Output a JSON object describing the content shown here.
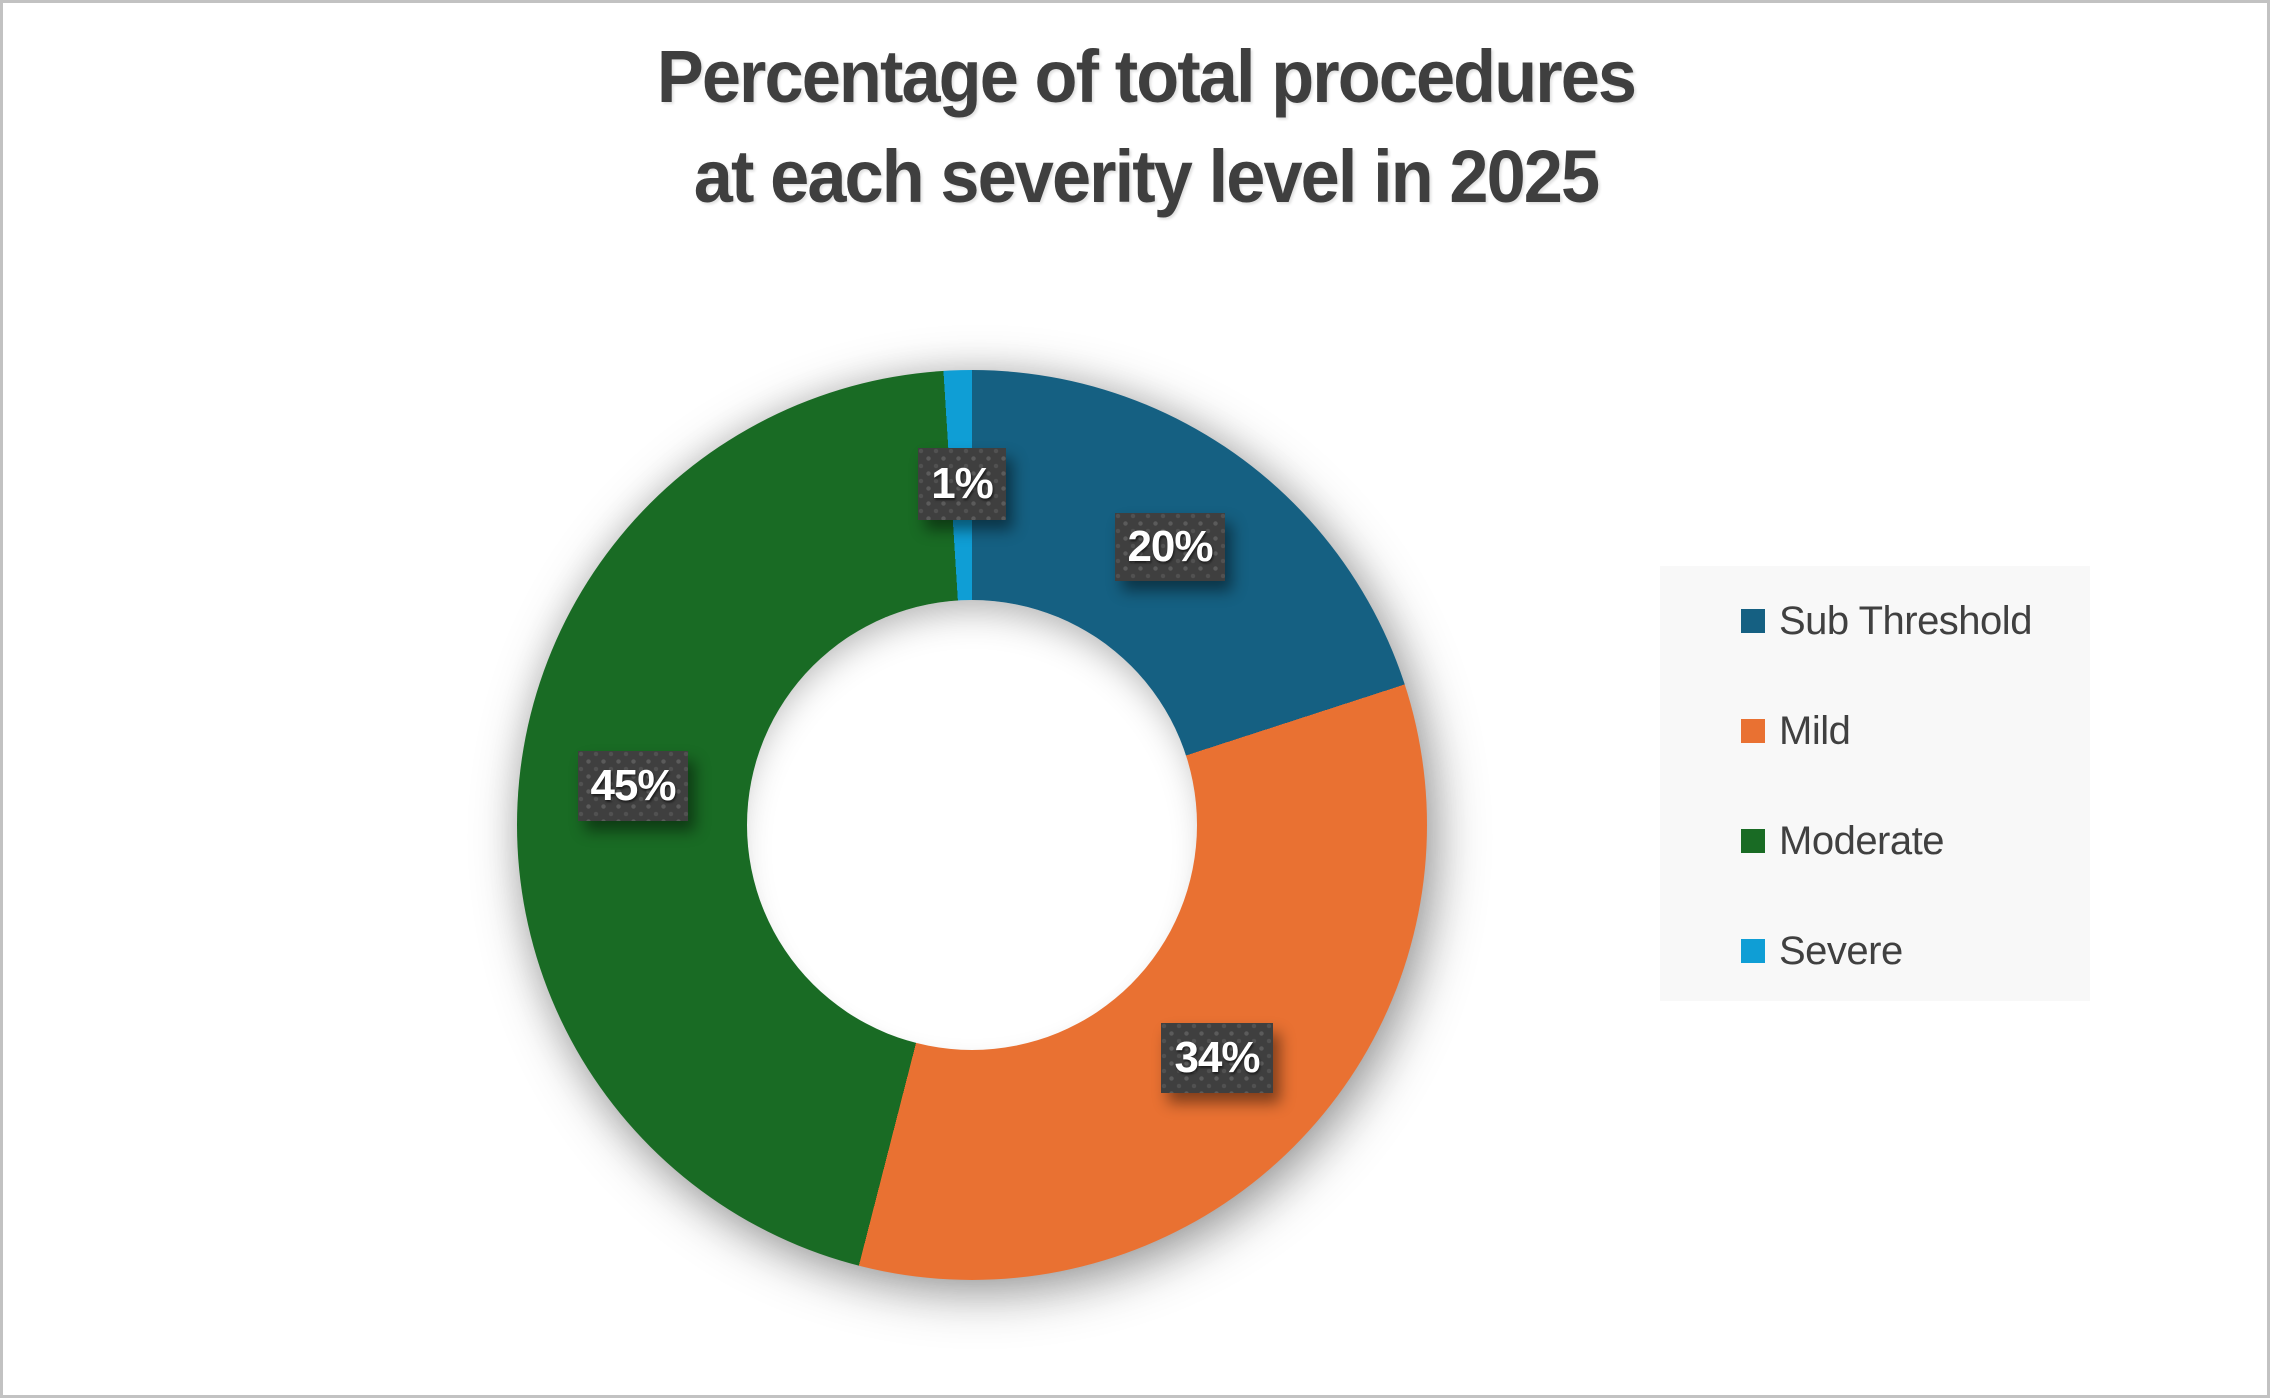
{
  "title": {
    "line1": "Percentage of total procedures",
    "line2": "at each severity level in 2025"
  },
  "chart_data": {
    "type": "pie",
    "subtype": "donut",
    "title": "Percentage of total procedures at each severity level in 2025",
    "categories": [
      "Sub Threshold",
      "Mild",
      "Moderate",
      "Severe"
    ],
    "values": [
      20,
      34,
      45,
      1
    ],
    "unit": "%",
    "start_angle_deg": 0,
    "direction": "clockwise",
    "hole_ratio": 0.49,
    "grid": false,
    "legend_position": "right",
    "segments": [
      {
        "name": "Sub Threshold",
        "value": 20,
        "label": "20%",
        "color": "#156082"
      },
      {
        "name": "Mild",
        "value": 34,
        "label": "34%",
        "color": "#E97132"
      },
      {
        "name": "Moderate",
        "value": 45,
        "label": "45%",
        "color": "#196B24"
      },
      {
        "name": "Severe",
        "value": 1,
        "label": "1%",
        "color": "#0F9ED5"
      }
    ],
    "data_label_style": {
      "background": "#3F3F3F",
      "pattern_dot_color": "#5B5B5B",
      "text_color": "#FFFFFF"
    }
  },
  "colors": {
    "title_text": "#3F3F3F",
    "legend_text": "#404040",
    "legend_background": "#F8F8F8",
    "canvas_border": "#C2C2C2",
    "background": "#FFFFFF"
  }
}
